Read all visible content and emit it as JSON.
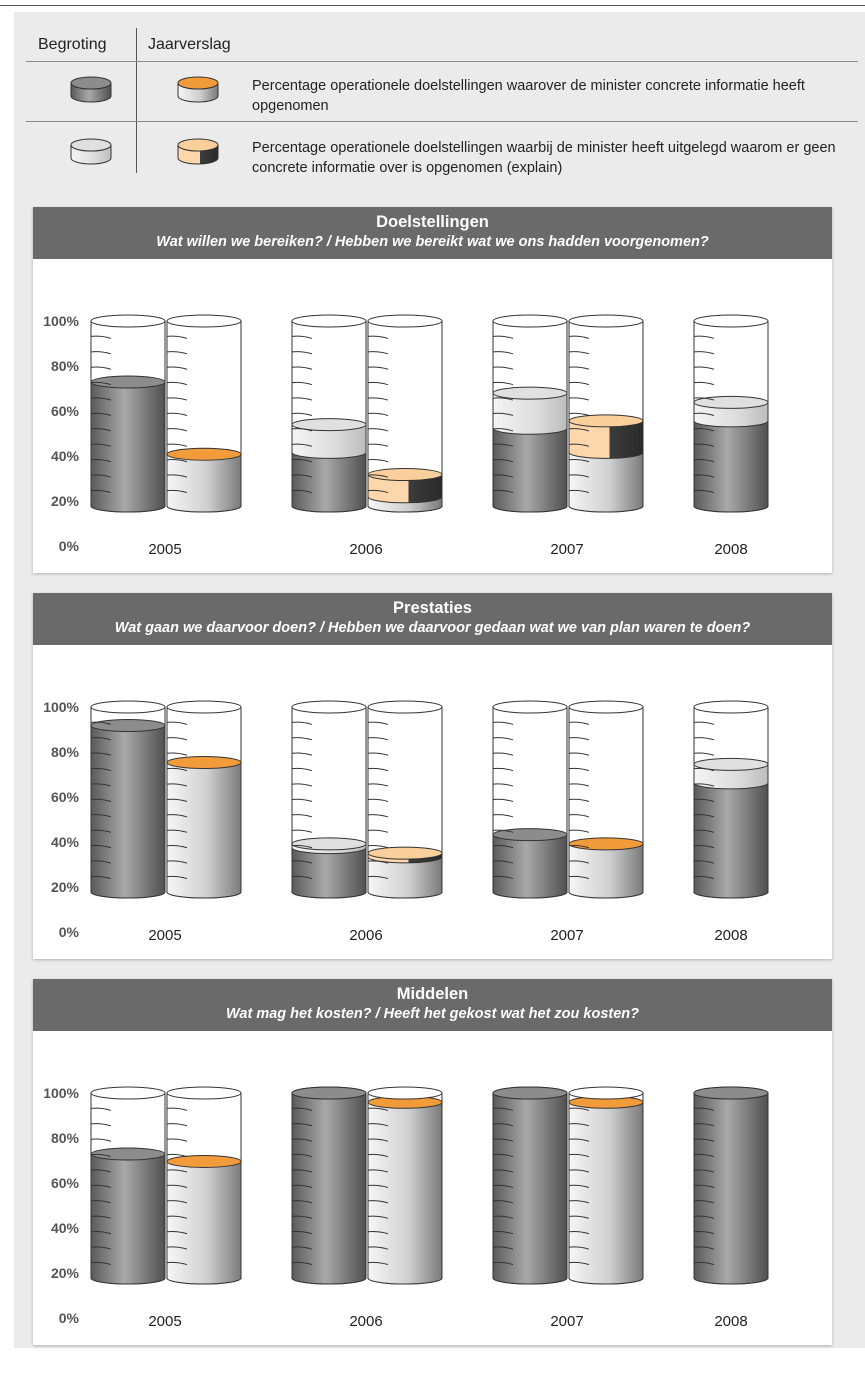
{
  "legend": {
    "header_begroting": "Begroting",
    "header_jaarverslag": "Jaarverslag",
    "row1_desc": "Percentage operationele doelstellingen waarover de minister concrete informatie heeft opgenomen",
    "row2_desc": "Percentage operationele doelstellingen waarbij de minister heeft uitgelegd waarom er geen concrete informatie over is opgenomen (explain)"
  },
  "colors": {
    "begroting_concrete": "#8c8c8c",
    "begroting_explain": "#e0e0e0",
    "jaarverslag_concrete": "#f29b3a",
    "jaarverslag_explain": "#f9cf9c"
  },
  "chart_data": [
    {
      "type": "bar",
      "title": "Doelstellingen",
      "subtitle": "Wat willen we bereiken? / Hebben we bereikt wat we ons hadden voorgenomen?",
      "categories": [
        "2005",
        "2006",
        "2007",
        "2008"
      ],
      "yticks": [
        "100%",
        "80%",
        "60%",
        "40%",
        "20%",
        "0%"
      ],
      "ylim": [
        0,
        100
      ],
      "series": [
        {
          "name": "Begroting",
          "concrete": [
            67,
            29,
            42,
            46
          ],
          "explain": [
            0,
            15,
            19,
            10
          ]
        },
        {
          "name": "Jaarverslag",
          "concrete": [
            28,
            5,
            29,
            null
          ],
          "explain": [
            0,
            12,
            17,
            null
          ]
        }
      ]
    },
    {
      "type": "bar",
      "title": "Prestaties",
      "subtitle": "Wat gaan we daarvoor doen? / Hebben we daarvoor gedaan wat we van plan waren te doen?",
      "categories": [
        "2005",
        "2006",
        "2007",
        "2008"
      ],
      "yticks": [
        "100%",
        "80%",
        "60%",
        "40%",
        "20%",
        "0%"
      ],
      "ylim": [
        0,
        100
      ],
      "series": [
        {
          "name": "Begroting",
          "concrete": [
            90,
            24,
            31,
            59
          ],
          "explain": [
            0,
            2,
            0,
            10
          ]
        },
        {
          "name": "Jaarverslag",
          "concrete": [
            70,
            19,
            26,
            null
          ],
          "explain": [
            0,
            2,
            0,
            null
          ]
        }
      ]
    },
    {
      "type": "bar",
      "title": "Middelen",
      "subtitle": "Wat mag het kosten? / Heeft het gekost wat het zou kosten?",
      "categories": [
        "2005",
        "2006",
        "2007",
        "2008"
      ],
      "yticks": [
        "100%",
        "80%",
        "60%",
        "40%",
        "20%",
        "0%"
      ],
      "ylim": [
        0,
        100
      ],
      "series": [
        {
          "name": "Begroting",
          "concrete": [
            67,
            100,
            100,
            100
          ],
          "explain": [
            0,
            0,
            0,
            0
          ]
        },
        {
          "name": "Jaarverslag",
          "concrete": [
            63,
            95,
            95,
            null
          ],
          "explain": [
            0,
            0,
            0,
            null
          ]
        }
      ]
    }
  ]
}
